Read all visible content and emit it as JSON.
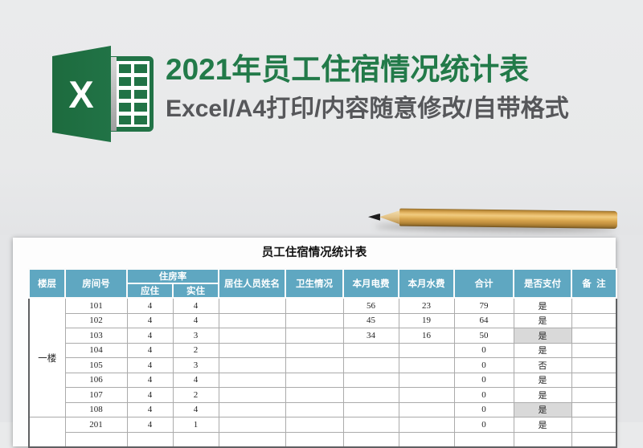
{
  "banner": {
    "title": "2021年员工住宿情况统计表",
    "subtitle": "Excel/A4打印/内容随意修改/自带格式",
    "logo_letter": "X",
    "colors": {
      "title_green": "#227a49",
      "subtitle_gray": "#56575a",
      "logo_green": "#217346"
    }
  },
  "sheet": {
    "title": "员工住宿情况统计表",
    "header_color": "#5fa7c1",
    "highlight_color": "#d9d9d9",
    "header": {
      "floor": "楼层",
      "room": "房间号",
      "occupancy": "住房率",
      "expected": "应住",
      "actual": "实住",
      "names": "居住人员姓名",
      "sanitation": "卫生情况",
      "electricity": "本月电费",
      "water": "本月水费",
      "total": "合计",
      "paid": "是否支付",
      "remark": "备  注"
    },
    "floor_groups": [
      {
        "label": "一楼",
        "span": 8
      },
      {
        "label": "",
        "span": 2
      }
    ],
    "rows": [
      {
        "room": "101",
        "expected": "4",
        "actual": "4",
        "names": "",
        "sanitation": "",
        "electricity": "56",
        "water": "23",
        "total": "79",
        "paid": "是",
        "paid_highlight": false,
        "remark": ""
      },
      {
        "room": "102",
        "expected": "4",
        "actual": "4",
        "names": "",
        "sanitation": "",
        "electricity": "45",
        "water": "19",
        "total": "64",
        "paid": "是",
        "paid_highlight": false,
        "remark": ""
      },
      {
        "room": "103",
        "expected": "4",
        "actual": "3",
        "names": "",
        "sanitation": "",
        "electricity": "34",
        "water": "16",
        "total": "50",
        "paid": "是",
        "paid_highlight": true,
        "remark": ""
      },
      {
        "room": "104",
        "expected": "4",
        "actual": "2",
        "names": "",
        "sanitation": "",
        "electricity": "",
        "water": "",
        "total": "0",
        "paid": "是",
        "paid_highlight": false,
        "remark": ""
      },
      {
        "room": "105",
        "expected": "4",
        "actual": "3",
        "names": "",
        "sanitation": "",
        "electricity": "",
        "water": "",
        "total": "0",
        "paid": "否",
        "paid_highlight": false,
        "remark": ""
      },
      {
        "room": "106",
        "expected": "4",
        "actual": "4",
        "names": "",
        "sanitation": "",
        "electricity": "",
        "water": "",
        "total": "0",
        "paid": "是",
        "paid_highlight": false,
        "remark": ""
      },
      {
        "room": "107",
        "expected": "4",
        "actual": "2",
        "names": "",
        "sanitation": "",
        "electricity": "",
        "water": "",
        "total": "0",
        "paid": "是",
        "paid_highlight": false,
        "remark": ""
      },
      {
        "room": "108",
        "expected": "4",
        "actual": "4",
        "names": "",
        "sanitation": "",
        "electricity": "",
        "water": "",
        "total": "0",
        "paid": "是",
        "paid_highlight": true,
        "remark": ""
      },
      {
        "room": "201",
        "expected": "4",
        "actual": "1",
        "names": "",
        "sanitation": "",
        "electricity": "",
        "water": "",
        "total": "0",
        "paid": "是",
        "paid_highlight": false,
        "remark": ""
      },
      {
        "room": "",
        "expected": "",
        "actual": "",
        "names": "",
        "sanitation": "",
        "electricity": "",
        "water": "",
        "total": "",
        "paid": "",
        "paid_highlight": false,
        "remark": ""
      }
    ]
  }
}
